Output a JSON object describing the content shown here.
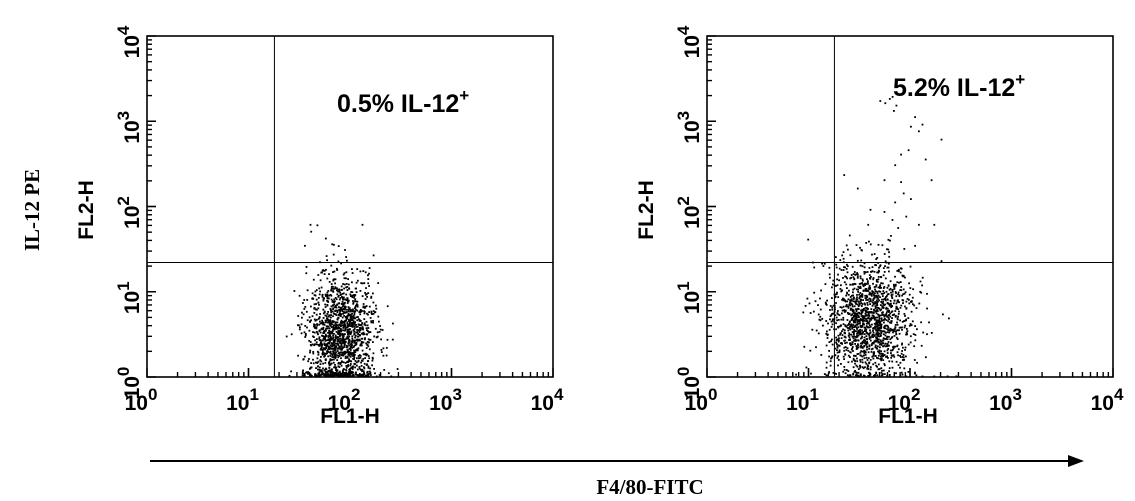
{
  "figure": {
    "y_axis_title": "IL-12 PE",
    "x_axis_title": "F4/80-FITC"
  },
  "chart_data": [
    {
      "type": "scatter",
      "x_scale": "log",
      "y_scale": "log",
      "xlim": [
        1,
        10000
      ],
      "ylim": [
        1,
        10000
      ],
      "xlabel": "FL1-H",
      "ylabel": "FL2-H",
      "x_ticks": [
        "10",
        "10",
        "10",
        "10",
        "10"
      ],
      "x_tick_exponents": [
        "0",
        "1",
        "2",
        "3",
        "4"
      ],
      "y_ticks": [
        "10",
        "10",
        "10",
        "10",
        "10"
      ],
      "y_tick_exponents": [
        "0",
        "1",
        "2",
        "3",
        "4"
      ],
      "quadrant_gate": {
        "x": 18,
        "y": 22
      },
      "annotation": {
        "text": "0.5% IL-12",
        "superscript": "+"
      },
      "population": {
        "x_median": 80,
        "x_spread": 0.17,
        "y_median": 3,
        "y_spread": 0.36,
        "count": 1500
      },
      "events": [
        [
          40,
          60
        ],
        [
          130,
          60
        ],
        [
          68,
          35
        ]
      ],
      "axis_events": [
        [
          90,
          1
        ],
        [
          140,
          1
        ],
        [
          180,
          1
        ],
        [
          250,
          1
        ]
      ]
    },
    {
      "type": "scatter",
      "x_scale": "log",
      "y_scale": "log",
      "xlim": [
        1,
        10000
      ],
      "ylim": [
        1,
        10000
      ],
      "xlabel": "FL1-H",
      "ylabel": "FL2-H",
      "x_ticks": [
        "10",
        "10",
        "10",
        "10",
        "10"
      ],
      "x_tick_exponents": [
        "0",
        "1",
        "2",
        "3",
        "4"
      ],
      "y_ticks": [
        "10",
        "10",
        "10",
        "10",
        "10"
      ],
      "y_tick_exponents": [
        "0",
        "1",
        "2",
        "3",
        "4"
      ],
      "quadrant_gate": {
        "x": 18,
        "y": 22
      },
      "annotation": {
        "text": "5.2% IL-12",
        "superscript": "+"
      },
      "population": {
        "x_median": 38,
        "x_spread": 0.22,
        "y_median": 4.5,
        "y_spread": 0.36,
        "count": 1500
      },
      "events": [
        [
          22,
          230
        ],
        [
          30,
          160
        ],
        [
          55,
          200
        ],
        [
          80,
          190
        ],
        [
          70,
          110
        ],
        [
          40,
          90
        ],
        [
          90,
          75
        ],
        [
          120,
          60
        ],
        [
          170,
          60
        ],
        [
          25,
          45
        ],
        [
          60,
          40
        ],
        [
          33,
          30
        ],
        [
          48,
          35
        ],
        [
          110,
          34
        ],
        [
          75,
          55
        ],
        [
          55,
          85
        ],
        [
          85,
          140
        ],
        [
          38,
          60
        ],
        [
          100,
          120
        ],
        [
          160,
          200
        ],
        [
          50,
          1700
        ],
        [
          56,
          1600
        ],
        [
          62,
          1800
        ],
        [
          66,
          1900
        ],
        [
          110,
          1100
        ],
        [
          100,
          850
        ],
        [
          120,
          750
        ],
        [
          80,
          400
        ],
        [
          70,
          300
        ],
        [
          95,
          450
        ],
        [
          140,
          350
        ],
        [
          68,
          1300
        ],
        [
          72,
          1500
        ],
        [
          200,
          600
        ],
        [
          130,
          900
        ]
      ],
      "axis_events": [
        [
          90,
          1
        ],
        [
          130,
          1
        ],
        [
          170,
          1
        ],
        [
          230,
          1
        ],
        [
          280,
          1
        ]
      ]
    }
  ]
}
